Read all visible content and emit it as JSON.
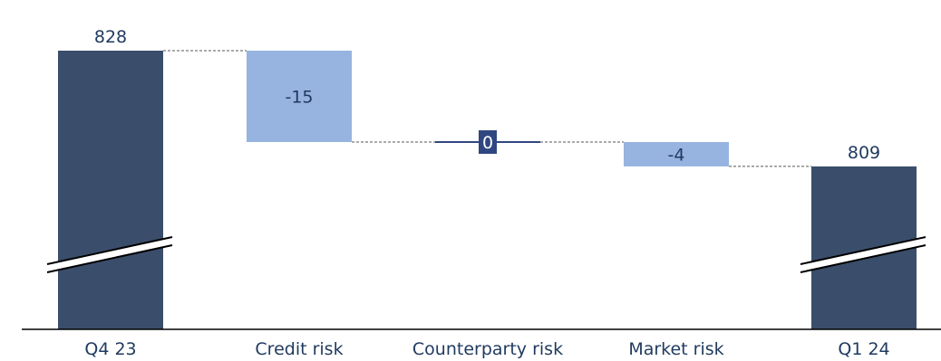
{
  "chart_data": {
    "type": "bar",
    "subtype": "waterfall",
    "categories": [
      "Q4 23",
      "Credit risk",
      "Counterparty risk",
      "Market risk",
      "Q1 24"
    ],
    "values": [
      828,
      -15,
      0,
      -4,
      809
    ],
    "value_labels": [
      "828",
      "-15",
      "0",
      "-4",
      "809"
    ],
    "kinds": [
      "total",
      "delta",
      "delta",
      "delta",
      "total"
    ],
    "axis_break": true,
    "grid": false,
    "legend": "none",
    "colors": {
      "total": "#3a4e6b",
      "delta": "#97b3e0",
      "zero_delta": "#2f4680",
      "text": "#1f3a5f",
      "connector": "#555555"
    }
  }
}
